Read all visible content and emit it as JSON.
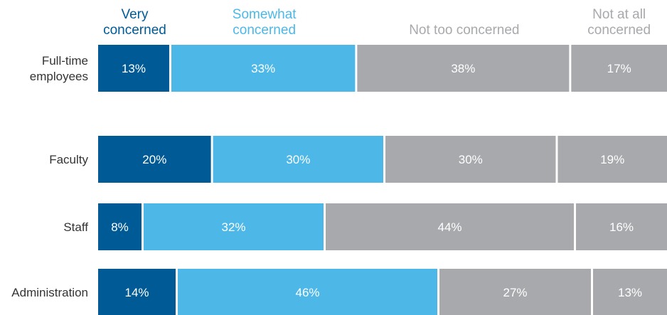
{
  "chart_data": {
    "type": "bar",
    "orientation": "horizontal",
    "stacked": true,
    "title": "",
    "xlabel": "",
    "ylabel": "",
    "grid": false,
    "legend_position": "top",
    "categories": [
      "Full-time employees",
      "Faculty",
      "Staff",
      "Administration"
    ],
    "series": [
      {
        "name": "Very concerned",
        "legend_lines": [
          "Very",
          "concerned"
        ],
        "color": "#005a96",
        "text_color": "#005a96",
        "values": [
          13,
          20,
          8,
          14
        ],
        "labels": [
          "13%",
          "20%",
          "8%",
          "14%"
        ]
      },
      {
        "name": "Somewhat concerned",
        "legend_lines": [
          "Somewhat",
          "concerned"
        ],
        "color": "#4db8e8",
        "text_color": "#4db8e8",
        "values": [
          33,
          30,
          32,
          46
        ],
        "labels": [
          "33%",
          "30%",
          "32%",
          "46%"
        ]
      },
      {
        "name": "Not too concerned",
        "legend_lines": [
          "Not too concerned"
        ],
        "color": "#a7a9ac",
        "text_color": "#a7a9ac",
        "values": [
          38,
          30,
          44,
          27
        ],
        "labels": [
          "38%",
          "30%",
          "44%",
          "27%"
        ]
      },
      {
        "name": "Not at all concerned",
        "legend_lines": [
          "Not at all",
          "concerned"
        ],
        "color": "#a7a9ac",
        "text_color": "#a7a9ac",
        "values": [
          17,
          19,
          16,
          13
        ],
        "labels": [
          "17%",
          "19%",
          "16%",
          "13%"
        ]
      }
    ],
    "category_lines": [
      [
        "Full-time",
        "employees"
      ],
      [
        "Faculty"
      ],
      [
        "Staff"
      ],
      [
        "Administration"
      ]
    ]
  }
}
